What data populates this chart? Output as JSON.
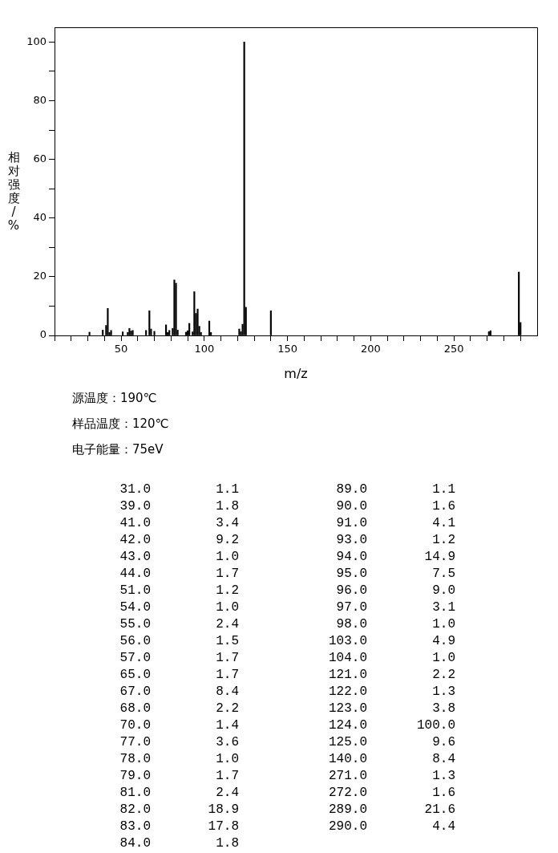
{
  "chart_data": [
    {
      "type": "bar",
      "xlabel": "m/z",
      "ylabel": "相对强度/%",
      "x": [
        31,
        39,
        41,
        42,
        43,
        44,
        51,
        54,
        55,
        56,
        57,
        65,
        67,
        68,
        70,
        77,
        78,
        79,
        81,
        82,
        83,
        84,
        89,
        90,
        91,
        93,
        94,
        95,
        96,
        97,
        98,
        103,
        104,
        121,
        122,
        123,
        124,
        125,
        140,
        271,
        272,
        289,
        290
      ],
      "values": [
        1.1,
        1.8,
        3.4,
        9.2,
        1.0,
        1.7,
        1.2,
        1.0,
        2.4,
        1.5,
        1.7,
        1.7,
        8.4,
        2.2,
        1.4,
        3.6,
        1.0,
        1.7,
        2.4,
        18.9,
        17.8,
        1.8,
        1.1,
        1.6,
        4.1,
        1.2,
        14.9,
        7.5,
        9.0,
        3.1,
        1.0,
        4.9,
        1.0,
        2.2,
        1.3,
        3.8,
        100.0,
        9.6,
        8.4,
        1.3,
        1.6,
        21.6,
        4.4
      ],
      "color": "#000000",
      "xlim": [
        10,
        300
      ],
      "xticks": [
        {
          "value": 10,
          "label": null
        },
        {
          "value": 20,
          "label": null
        },
        {
          "value": 30,
          "label": null
        },
        {
          "value": 40,
          "label": null
        },
        50,
        {
          "value": 60,
          "label": null
        },
        {
          "value": 70,
          "label": null
        },
        {
          "value": 80,
          "label": null
        },
        {
          "value": 90,
          "label": null
        },
        100,
        {
          "value": 110,
          "label": null
        },
        {
          "value": 120,
          "label": null
        },
        {
          "value": 130,
          "label": null
        },
        {
          "value": 140,
          "label": null
        },
        150,
        {
          "value": 160,
          "label": null
        },
        {
          "value": 170,
          "label": null
        },
        {
          "value": 180,
          "label": null
        },
        {
          "value": 190,
          "label": null
        },
        200,
        {
          "value": 210,
          "label": null
        },
        {
          "value": 220,
          "label": null
        },
        {
          "value": 230,
          "label": null
        },
        {
          "value": 240,
          "label": null
        },
        250,
        {
          "value": 260,
          "label": null
        },
        {
          "value": 270,
          "label": null
        },
        {
          "value": 280,
          "label": null
        },
        {
          "value": 290,
          "label": null
        }
      ],
      "ylim": [
        0,
        105
      ],
      "yticks": [
        0,
        {
          "value": 10,
          "label": null
        },
        20,
        {
          "value": 30,
          "label": null
        },
        40,
        {
          "value": 50,
          "label": null
        },
        60,
        {
          "value": 70,
          "label": null
        },
        80,
        {
          "value": 90,
          "label": null
        },
        100
      ],
      "grid": false,
      "annotations": [
        "源温度：190℃",
        "样品温度：120℃",
        "电子能量：75eV"
      ]
    },
    {
      "type": "other",
      "categories": [
        "31.0",
        "39.0",
        "41.0",
        "42.0",
        "43.0",
        "44.0",
        "51.0",
        "54.0",
        "55.0",
        "56.0",
        "57.0",
        "65.0",
        "67.0",
        "68.0",
        "70.0",
        "77.0",
        "78.0",
        "79.0",
        "81.0",
        "82.0",
        "83.0",
        "84.0",
        "89.0",
        "90.0",
        "91.0",
        "93.0",
        "94.0",
        "95.0",
        "96.0",
        "97.0",
        "98.0",
        "103.0",
        "104.0",
        "121.0",
        "122.0",
        "123.0",
        "124.0",
        "125.0",
        "140.0",
        "271.0",
        "272.0",
        "289.0",
        "290.0"
      ],
      "value_labels": [
        "1.1",
        "1.8",
        "3.4",
        "9.2",
        "1.0",
        "1.7",
        "1.2",
        "1.0",
        "2.4",
        "1.5",
        "1.7",
        "1.7",
        "8.4",
        "2.2",
        "1.4",
        "3.6",
        "1.0",
        "1.7",
        "2.4",
        "18.9",
        "17.8",
        "1.8",
        "1.1",
        "1.6",
        "4.1",
        "1.2",
        "14.9",
        "7.5",
        "9.0",
        "3.1",
        "1.0",
        "4.9",
        "1.0",
        "2.2",
        "1.3",
        "3.8",
        "100.0",
        "9.6",
        "8.4",
        "1.3",
        "1.6",
        "21.6",
        "4.4"
      ]
    }
  ]
}
